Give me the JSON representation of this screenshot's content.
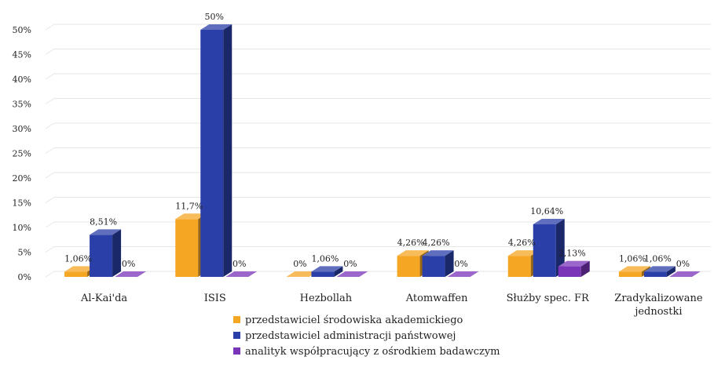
{
  "chart_data": {
    "type": "bar",
    "title": "",
    "xlabel": "",
    "ylabel": "",
    "ylim": [
      0,
      50
    ],
    "yticks": [
      "0%",
      "5%",
      "10%",
      "15%",
      "20%",
      "25%",
      "30%",
      "35%",
      "40%",
      "45%",
      "50%"
    ],
    "grid": true,
    "legend_position": "bottom",
    "categories": [
      "Al-Kai'da",
      "ISIS",
      "Hezbollah",
      "Atomwaffen",
      "Służby spec. FR",
      "Zradykalizowane jednostki"
    ],
    "category_lines": [
      [
        "Al-Kai'da"
      ],
      [
        "ISIS"
      ],
      [
        "Hezbollah"
      ],
      [
        "Atomwaffen"
      ],
      [
        "Służby spec. FR"
      ],
      [
        "Zradykalizowane",
        "jednostki"
      ]
    ],
    "series": [
      {
        "name": "przedstawiciel środowiska akademickiego",
        "color": "#f5a623",
        "values": [
          1.06,
          11.7,
          0,
          4.26,
          4.26,
          1.06
        ],
        "labels": [
          "1,06%",
          "11,7%",
          "0%",
          "4,26%",
          "4,26%",
          "1,06%"
        ]
      },
      {
        "name": "przedstawiciel administracji państwowej",
        "color": "#2a3fa8",
        "values": [
          8.51,
          50,
          1.06,
          4.26,
          10.64,
          1.06
        ],
        "labels": [
          "8,51%",
          "50%",
          "1,06%",
          "4,26%",
          "10,64%",
          "1,06%"
        ]
      },
      {
        "name": "analityk współpracujący z ośrodkiem badawczym",
        "color": "#7a34b8",
        "values": [
          0,
          0,
          0,
          0,
          2.13,
          0
        ],
        "labels": [
          "0%",
          "0%",
          "0%",
          "0%",
          "2,13%",
          "0%"
        ]
      }
    ]
  }
}
